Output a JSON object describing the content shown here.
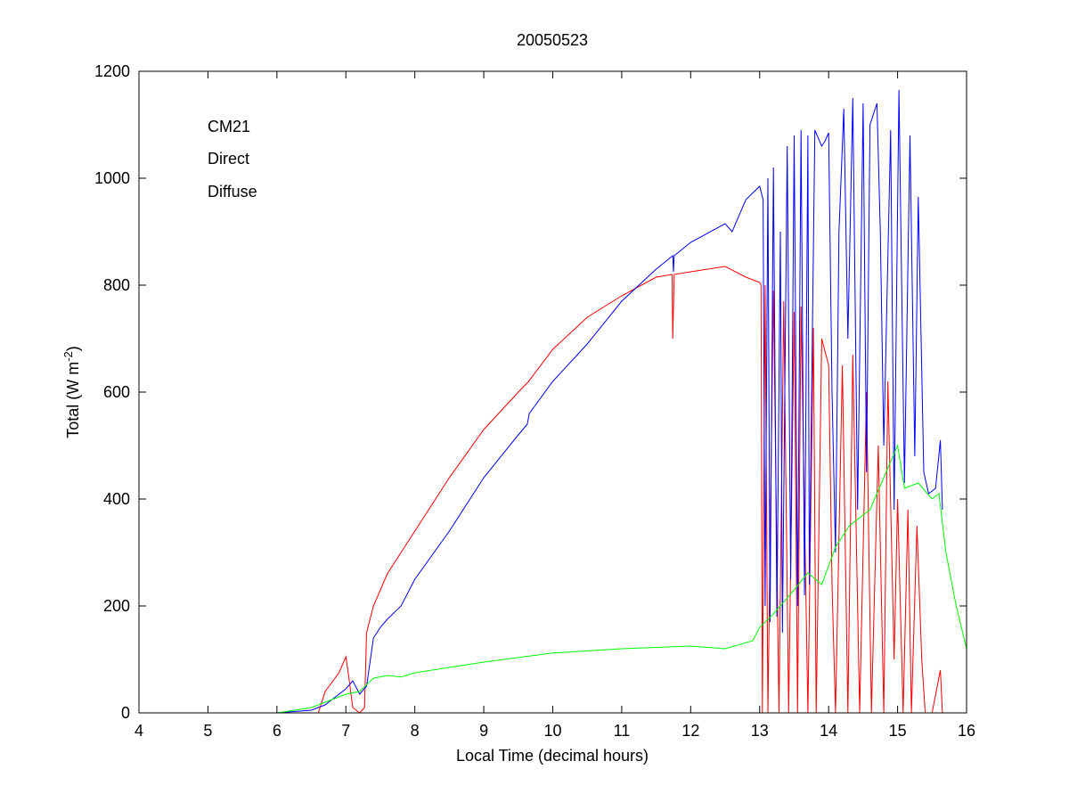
{
  "chart_data": {
    "type": "line",
    "title": "20050523",
    "xlabel": "Local Time (decimal hours)",
    "ylabel_main": "Total (W m",
    "ylabel_sup": "-2",
    "ylabel_close": ")",
    "xlim": [
      4,
      16
    ],
    "ylim": [
      0,
      1200
    ],
    "xticks": [
      "4",
      "5",
      "6",
      "7",
      "8",
      "9",
      "10",
      "11",
      "12",
      "13",
      "14",
      "15",
      "16"
    ],
    "yticks": [
      "0",
      "200",
      "400",
      "600",
      "800",
      "1000",
      "1200"
    ],
    "grid": false,
    "legend_position": "top-left",
    "series": [
      {
        "name": "CM21",
        "color": "#0000ff",
        "points": [
          [
            4,
            0
          ],
          [
            6,
            0
          ],
          [
            6.5,
            5
          ],
          [
            6.7,
            15
          ],
          [
            7.0,
            45
          ],
          [
            7.1,
            60
          ],
          [
            7.2,
            35
          ],
          [
            7.3,
            50
          ],
          [
            7.4,
            140
          ],
          [
            7.5,
            160
          ],
          [
            7.6,
            175
          ],
          [
            7.8,
            200
          ],
          [
            8,
            250
          ],
          [
            8.5,
            340
          ],
          [
            9,
            440
          ],
          [
            9.5,
            520
          ],
          [
            9.63,
            540
          ],
          [
            9.66,
            560
          ],
          [
            10,
            620
          ],
          [
            10.5,
            690
          ],
          [
            11,
            770
          ],
          [
            11.5,
            830
          ],
          [
            11.74,
            855
          ],
          [
            11.75,
            825
          ],
          [
            11.76,
            855
          ],
          [
            12,
            880
          ],
          [
            12.5,
            915
          ],
          [
            12.6,
            900
          ],
          [
            12.8,
            960
          ],
          [
            13,
            985
          ],
          [
            13.05,
            960
          ],
          [
            13.08,
            200
          ],
          [
            13.12,
            1000
          ],
          [
            13.15,
            170
          ],
          [
            13.2,
            1020
          ],
          [
            13.25,
            180
          ],
          [
            13.3,
            900
          ],
          [
            13.33,
            150
          ],
          [
            13.4,
            1060
          ],
          [
            13.45,
            250
          ],
          [
            13.5,
            1080
          ],
          [
            13.55,
            200
          ],
          [
            13.6,
            1090
          ],
          [
            13.65,
            220
          ],
          [
            13.7,
            1080
          ],
          [
            13.72,
            240
          ],
          [
            13.8,
            1090
          ],
          [
            13.9,
            1060
          ],
          [
            13.95,
            1070
          ],
          [
            14.0,
            1085
          ],
          [
            14.05,
            600
          ],
          [
            14.1,
            300
          ],
          [
            14.15,
            900
          ],
          [
            14.22,
            1130
          ],
          [
            14.28,
            700
          ],
          [
            14.35,
            1150
          ],
          [
            14.42,
            380
          ],
          [
            14.5,
            1140
          ],
          [
            14.55,
            450
          ],
          [
            14.6,
            1100
          ],
          [
            14.7,
            1140
          ],
          [
            14.75,
            900
          ],
          [
            14.8,
            500
          ],
          [
            14.9,
            1090
          ],
          [
            14.95,
            380
          ],
          [
            15.02,
            1165
          ],
          [
            15.1,
            430
          ],
          [
            15.18,
            1080
          ],
          [
            15.25,
            480
          ],
          [
            15.3,
            965
          ],
          [
            15.38,
            450
          ],
          [
            15.45,
            410
          ],
          [
            15.55,
            420
          ],
          [
            15.62,
            510
          ],
          [
            15.65,
            380
          ]
        ]
      },
      {
        "name": "Direct",
        "color": "#ff0000",
        "points": [
          [
            4.5,
            0
          ],
          [
            6.6,
            0
          ],
          [
            6.7,
            40
          ],
          [
            6.9,
            75
          ],
          [
            7.0,
            105
          ],
          [
            7.05,
            60
          ],
          [
            7.1,
            10
          ],
          [
            7.2,
            0
          ],
          [
            7.27,
            10
          ],
          [
            7.3,
            150
          ],
          [
            7.4,
            200
          ],
          [
            7.5,
            230
          ],
          [
            7.6,
            260
          ],
          [
            7.8,
            300
          ],
          [
            8,
            340
          ],
          [
            8.5,
            440
          ],
          [
            9,
            530
          ],
          [
            9.5,
            600
          ],
          [
            9.65,
            620
          ],
          [
            10,
            680
          ],
          [
            10.5,
            740
          ],
          [
            11,
            780
          ],
          [
            11.5,
            815
          ],
          [
            11.73,
            820
          ],
          [
            11.74,
            700
          ],
          [
            11.76,
            820
          ],
          [
            12,
            825
          ],
          [
            12.5,
            835
          ],
          [
            12.8,
            815
          ],
          [
            13,
            805
          ],
          [
            13.02,
            800
          ],
          [
            13.04,
            0
          ],
          [
            13.08,
            800
          ],
          [
            13.12,
            0
          ],
          [
            13.2,
            790
          ],
          [
            13.28,
            0
          ],
          [
            13.35,
            770
          ],
          [
            13.42,
            0
          ],
          [
            13.5,
            750
          ],
          [
            13.55,
            0
          ],
          [
            13.6,
            760
          ],
          [
            13.7,
            0
          ],
          [
            13.78,
            720
          ],
          [
            13.82,
            0
          ],
          [
            13.9,
            700
          ],
          [
            14.0,
            650
          ],
          [
            14.05,
            240
          ],
          [
            14.1,
            0
          ],
          [
            14.2,
            650
          ],
          [
            14.28,
            0
          ],
          [
            14.35,
            670
          ],
          [
            14.45,
            0
          ],
          [
            14.55,
            600
          ],
          [
            14.62,
            0
          ],
          [
            14.72,
            500
          ],
          [
            14.8,
            0
          ],
          [
            14.86,
            620
          ],
          [
            14.95,
            100
          ],
          [
            15.0,
            400
          ],
          [
            15.08,
            0
          ],
          [
            15.15,
            380
          ],
          [
            15.2,
            0
          ],
          [
            15.28,
            350
          ],
          [
            15.35,
            100
          ],
          [
            15.4,
            0
          ],
          [
            15.5,
            0
          ],
          [
            15.62,
            80
          ],
          [
            15.65,
            0
          ]
        ]
      },
      {
        "name": "Diffuse",
        "color": "#00ff00",
        "points": [
          [
            6,
            0
          ],
          [
            6.5,
            10
          ],
          [
            7,
            35
          ],
          [
            7.2,
            40
          ],
          [
            7.4,
            65
          ],
          [
            7.6,
            70
          ],
          [
            7.8,
            67
          ],
          [
            8,
            75
          ],
          [
            9,
            95
          ],
          [
            10,
            112
          ],
          [
            11,
            120
          ],
          [
            12,
            125
          ],
          [
            12.5,
            120
          ],
          [
            12.9,
            135
          ],
          [
            13.0,
            160
          ],
          [
            13.2,
            185
          ],
          [
            13.5,
            230
          ],
          [
            13.7,
            262
          ],
          [
            13.9,
            240
          ],
          [
            14.1,
            310
          ],
          [
            14.3,
            350
          ],
          [
            14.6,
            380
          ],
          [
            14.8,
            440
          ],
          [
            15,
            500
          ],
          [
            15.1,
            420
          ],
          [
            15.3,
            430
          ],
          [
            15.5,
            400
          ],
          [
            15.6,
            410
          ],
          [
            15.7,
            300
          ],
          [
            15.85,
            200
          ],
          [
            16,
            120
          ]
        ]
      }
    ]
  }
}
